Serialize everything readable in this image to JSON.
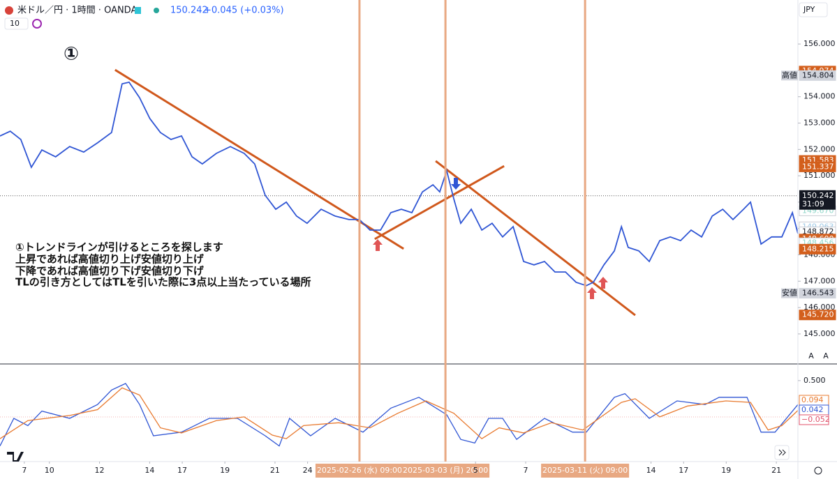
{
  "header": {
    "symbol": "米ドル／円 · 1時間 · OANDA",
    "price": "150.242",
    "change": "+0.045 (+0.03%)",
    "indicator_count": "10",
    "currency": "JPY",
    "buttons": [
      "A",
      "A"
    ]
  },
  "note": {
    "marker": "①",
    "lines": [
      "①トレンドラインが引けるところを探します",
      "上昇であれば高値切り上げ安値切り上げ",
      "下降であれば高値切り下げ安値切り下げ",
      "TLの引き方としてはTLを引いた際に3点以上当たっている場所"
    ]
  },
  "chart_data": [
    {
      "type": "line",
      "series": [
        {
          "color": "#2f55d4",
          "x": [
            -0.97,
            -0.56,
            -0.14,
            0.28,
            0.7,
            1.25,
            1.81,
            2.37,
            2.92,
            3.48,
            3.9,
            4.18,
            4.6,
            5.01,
            5.43,
            5.85,
            6.27,
            6.69,
            7.1,
            7.66,
            8.22,
            8.77,
            9.19,
            9.61,
            10.03,
            10.45,
            10.86,
            11.28,
            11.84,
            12.4,
            12.95,
            13.37,
            13.79,
            14.21,
            14.62,
            15.04,
            15.46,
            15.88,
            16.3,
            16.57,
            16.85,
            17.13,
            17.41,
            17.83,
            18.25,
            18.66,
            19.08,
            19.5,
            19.92,
            20.33,
            20.75,
            21.17,
            21.59,
            22.01,
            22.42,
            22.7,
            23.12,
            23.54,
            23.82,
            24.09,
            24.51,
            24.93,
            25.35,
            25.77,
            26.18,
            26.6,
            27.02,
            27.44,
            27.86,
            28.27,
            28.69,
            28.97,
            29.39,
            29.81,
            30.22,
            30.64,
            30.86
          ],
          "values": [
            152.51,
            152.69,
            152.38,
            151.32,
            151.98,
            151.72,
            152.11,
            151.9,
            152.25,
            152.64,
            154.49,
            154.55,
            153.96,
            153.17,
            152.64,
            152.38,
            152.51,
            151.72,
            151.45,
            151.85,
            152.11,
            151.85,
            151.45,
            150.26,
            149.73,
            150.0,
            149.47,
            149.2,
            149.73,
            149.47,
            149.34,
            149.34,
            148.94,
            148.94,
            149.6,
            149.73,
            149.6,
            150.39,
            150.66,
            150.39,
            151.19,
            150.13,
            149.2,
            149.73,
            148.94,
            149.2,
            148.68,
            149.07,
            147.75,
            147.62,
            147.75,
            147.35,
            147.35,
            146.96,
            146.83,
            146.96,
            147.62,
            148.15,
            149.07,
            148.28,
            148.15,
            147.75,
            148.54,
            148.68,
            148.54,
            148.94,
            148.68,
            149.47,
            149.73,
            149.34,
            149.73,
            150.0,
            148.41,
            148.68,
            148.68,
            149.6,
            148.81
          ]
        }
      ],
      "xlim": [
        -0.97,
        30.86
      ],
      "ylim": [
        143.86,
        157.67
      ],
      "yticks": [
        {
          "value": 145,
          "label": "145.000"
        },
        {
          "value": 146,
          "label": "146.000"
        },
        {
          "value": 147,
          "label": "147.000"
        },
        {
          "value": 148,
          "label": "148.000"
        },
        {
          "value": 149,
          "label": "149.000"
        },
        {
          "value": 150,
          "label": "150.000"
        },
        {
          "value": 151,
          "label": "151.000"
        },
        {
          "value": 152,
          "label": "152.000"
        },
        {
          "value": 153,
          "label": "153.000"
        },
        {
          "value": 154,
          "label": "154.000"
        },
        {
          "value": 155,
          "label": "155.000"
        },
        {
          "value": 156,
          "label": "156.000"
        }
      ],
      "xticks": [
        {
          "value": 0,
          "label": "7"
        },
        {
          "value": 1,
          "label": "10"
        },
        {
          "value": 3,
          "label": "12"
        },
        {
          "value": 5,
          "label": "14"
        },
        {
          "value": 6.3,
          "label": "17"
        },
        {
          "value": 8,
          "label": "19"
        },
        {
          "value": 10,
          "label": "21"
        },
        {
          "value": 11.3,
          "label": "24"
        },
        {
          "value": 18,
          "label": "5"
        },
        {
          "value": 20,
          "label": "7"
        },
        {
          "value": 25,
          "label": "14"
        },
        {
          "value": 26.3,
          "label": "17"
        },
        {
          "value": 28,
          "label": "19"
        },
        {
          "value": 30,
          "label": "21"
        }
      ],
      "last_price": {
        "value": 150.242,
        "label": "150.242",
        "countdown": "31:09"
      },
      "price_labels": [
        {
          "value": 154.974,
          "label": "154.974",
          "bg": "#d35f1c",
          "fg": "#ffffff"
        },
        {
          "value": 154.804,
          "label": "154.804",
          "bg": "#d1d4dc",
          "fg": "#131722",
          "tag": "高値"
        },
        {
          "value": 151.583,
          "label": "151.583",
          "bg": "#d35f1c",
          "fg": "#ffffff"
        },
        {
          "value": 151.337,
          "label": "151.337",
          "bg": "#d35f1c",
          "fg": "#ffffff"
        },
        {
          "value": 149.67,
          "label": "149.670",
          "bg": "#ffffff",
          "fg": "#8fd6c8"
        },
        {
          "value": 149.063,
          "label": "149.063",
          "bg": "#ffffff",
          "fg": "#9fc9e6"
        },
        {
          "value": 148.872,
          "label": "148.872",
          "bg": "#ffffff",
          "fg": "#131722"
        },
        {
          "value": 148.6,
          "label": "148.600",
          "bg": "#d35f1c",
          "fg": "#ffffff"
        },
        {
          "value": 148.456,
          "label": "148.456",
          "bg": "#ffffff",
          "fg": "#8fd6c8"
        },
        {
          "value": 148.215,
          "label": "148.215",
          "bg": "#d35f1c",
          "fg": "#ffffff"
        },
        {
          "value": 146.543,
          "label": "146.543",
          "bg": "#d1d4dc",
          "fg": "#131722",
          "tag": "安値"
        },
        {
          "value": 145.72,
          "label": "145.720",
          "bg": "#d35f1c",
          "fg": "#ffffff"
        }
      ],
      "trendlines": [
        {
          "x": [
            3.62,
            15.13
          ],
          "y": [
            155.02,
            148.23
          ],
          "color": "#d0581c"
        },
        {
          "x": [
            13.98,
            19.14
          ],
          "y": [
            148.6,
            151.37
          ],
          "color": "#d0581c"
        },
        {
          "x": [
            16.41,
            24.37
          ],
          "y": [
            151.56,
            145.71
          ],
          "color": "#d0581c"
        }
      ],
      "vlines": [
        {
          "x": 13.37,
          "label": "2025-02-26 (水) 09:00",
          "color": "#e8a882"
        },
        {
          "x": 16.8,
          "label": "2025-03-03 (月) 20:00",
          "color": "#e8a882"
        },
        {
          "x": 22.37,
          "label": "2025-03-11 (火) 09:00",
          "color": "#e8a882"
        }
      ]
    },
    {
      "type": "line",
      "series": [
        {
          "color": "#2f55d4",
          "x": [
            -0.97,
            -0.42,
            0.14,
            0.7,
            1.81,
            2.92,
            3.48,
            4.04,
            4.6,
            5.15,
            6.27,
            7.38,
            8.5,
            9.61,
            10.17,
            10.58,
            11.42,
            12.4,
            13.51,
            14.62,
            15.74,
            16.85,
            17.41,
            17.97,
            18.52,
            19.08,
            19.64,
            20.75,
            21.87,
            22.42,
            23.54,
            23.96,
            24.93,
            26.04,
            27.16,
            27.72,
            28.83,
            29.39,
            29.95,
            30.86
          ],
          "values": [
            -0.4,
            -0.02,
            -0.12,
            0.08,
            -0.02,
            0.17,
            0.37,
            0.46,
            0.17,
            -0.26,
            -0.21,
            -0.02,
            -0.02,
            -0.26,
            -0.4,
            -0.02,
            -0.26,
            -0.02,
            -0.21,
            0.12,
            0.27,
            0.03,
            -0.31,
            -0.36,
            -0.02,
            -0.02,
            -0.31,
            -0.02,
            -0.21,
            -0.21,
            0.27,
            0.32,
            -0.02,
            0.22,
            0.17,
            0.27,
            0.27,
            -0.21,
            -0.21,
            0.17
          ]
        },
        {
          "color": "#e8792e",
          "x": [
            -0.97,
            0.14,
            1.81,
            2.92,
            3.9,
            4.6,
            5.43,
            6.27,
            7.66,
            8.77,
            9.89,
            10.45,
            11.14,
            12.54,
            13.79,
            14.9,
            16.02,
            17.13,
            18.25,
            18.94,
            19.92,
            21.03,
            22.28,
            23.82,
            24.37,
            25.35,
            26.46,
            27.99,
            28.97,
            29.67,
            30.22,
            30.86
          ],
          "values": [
            -0.3,
            -0.05,
            0.02,
            0.1,
            0.4,
            0.3,
            -0.15,
            -0.22,
            -0.05,
            0.0,
            -0.25,
            -0.3,
            -0.12,
            -0.08,
            -0.15,
            0.05,
            0.22,
            0.05,
            -0.3,
            -0.15,
            -0.22,
            -0.08,
            -0.18,
            0.2,
            0.25,
            0.0,
            0.15,
            0.22,
            0.2,
            -0.18,
            -0.12,
            0.09
          ]
        }
      ],
      "xlim": [
        -0.97,
        30.86
      ],
      "ylim": [
        -0.615,
        0.71
      ],
      "yticks": [
        {
          "value": 0.5,
          "label": "0.500"
        }
      ],
      "value_labels": [
        {
          "value": 0.094,
          "label": "0.094",
          "fg": "#e8792e"
        },
        {
          "value": 0.042,
          "label": "0.042",
          "fg": "#2f55d4"
        },
        {
          "value": -0.052,
          "label": "−0.052",
          "fg": "#e0506a"
        }
      ]
    }
  ]
}
